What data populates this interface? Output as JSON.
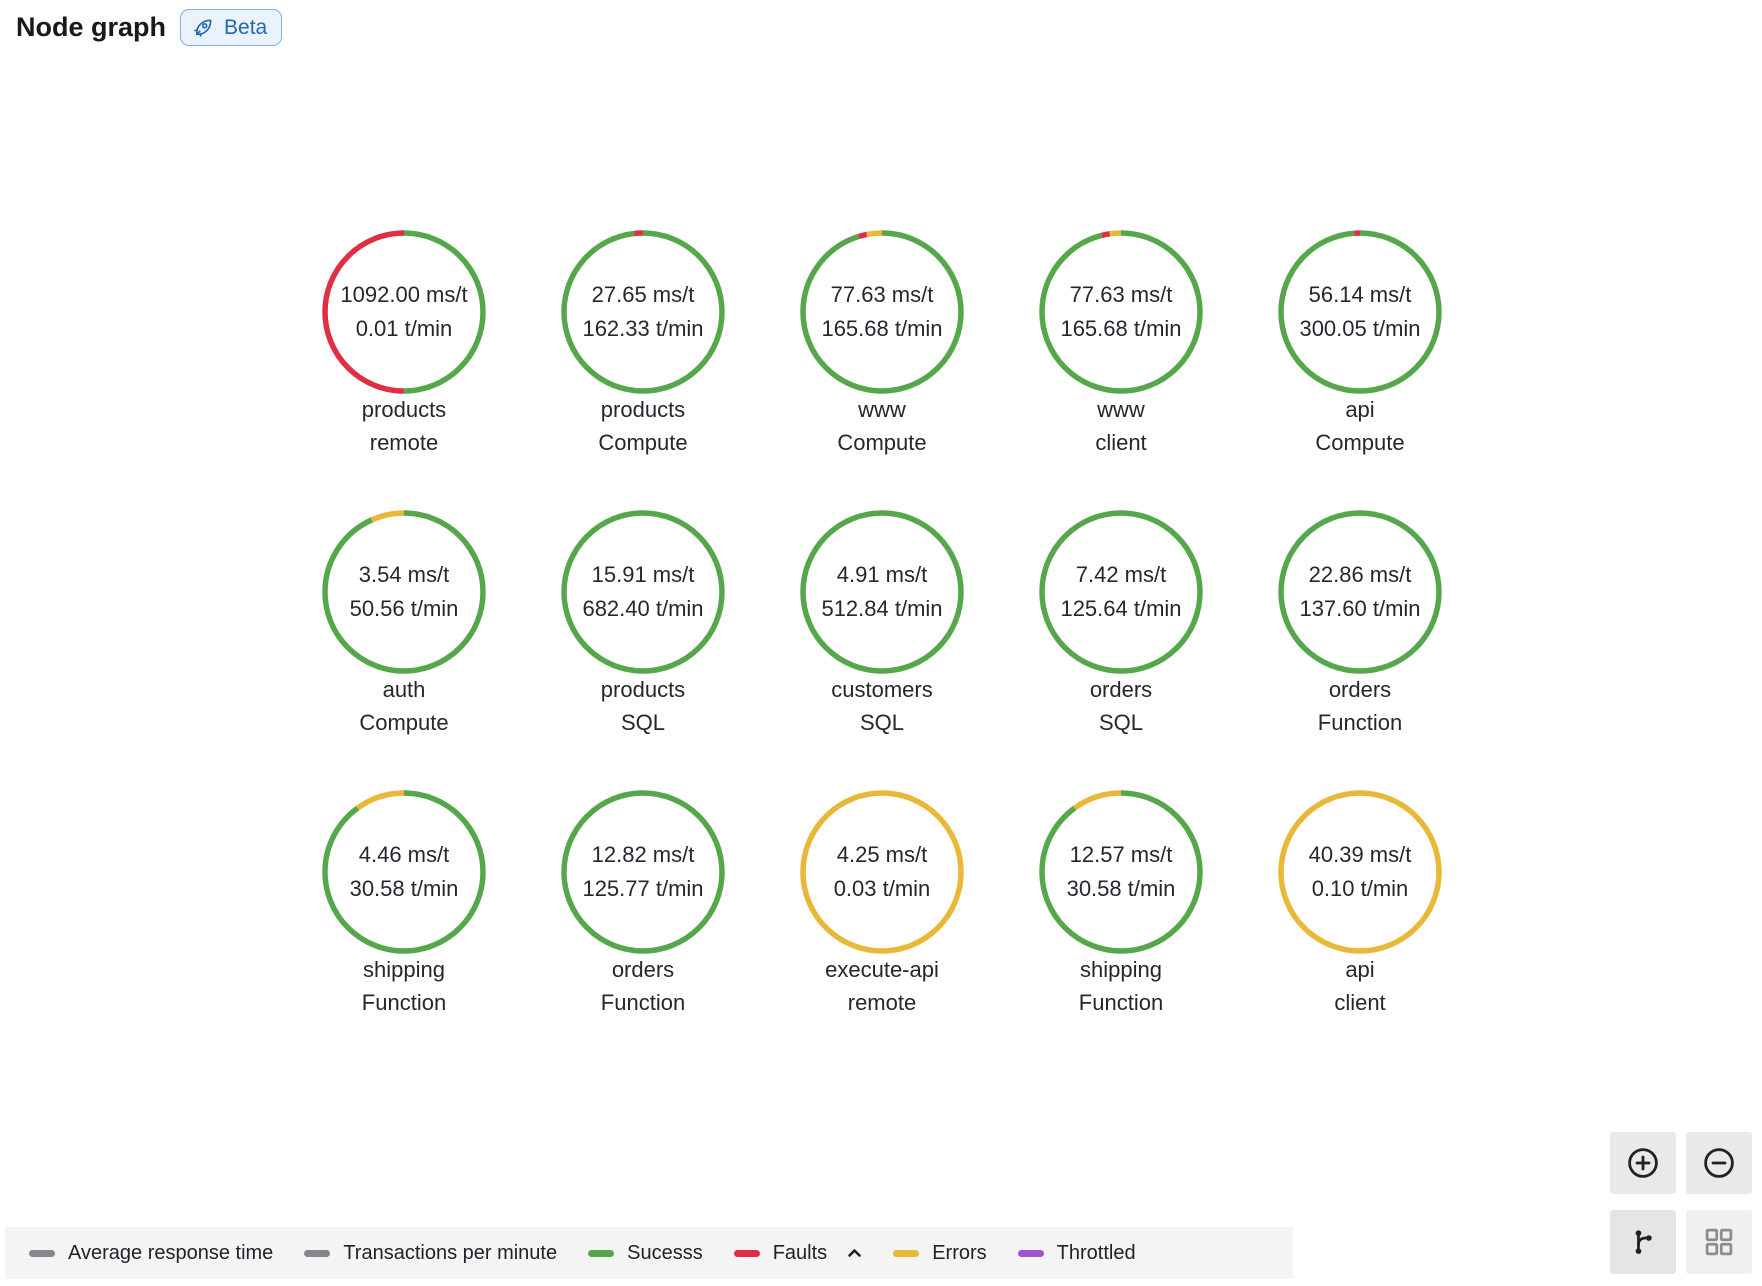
{
  "header": {
    "title": "Node graph",
    "beta": {
      "label": "Beta"
    }
  },
  "colors": {
    "success": "#56A64B",
    "faults": "#E02F44",
    "errors": "#EAB839",
    "throttled": "#A352CC",
    "metric": "#85878C"
  },
  "nodes": [
    {
      "stat1": "1092.00 ms/t",
      "stat2": "0.01 t/min",
      "title": "products",
      "subtitle": "remote",
      "segments": [
        {
          "kind": "success",
          "frac": 0.5
        },
        {
          "kind": "faults",
          "frac": 0.5
        }
      ]
    },
    {
      "stat1": "27.65 ms/t",
      "stat2": "162.33 t/min",
      "title": "products",
      "subtitle": "Compute",
      "segments": [
        {
          "kind": "success",
          "frac": 0.982
        },
        {
          "kind": "faults",
          "frac": 0.018
        }
      ]
    },
    {
      "stat1": "77.63 ms/t",
      "stat2": "165.68 t/min",
      "title": "www",
      "subtitle": "Compute",
      "segments": [
        {
          "kind": "success",
          "frac": 0.952
        },
        {
          "kind": "faults",
          "frac": 0.017
        },
        {
          "kind": "errors",
          "frac": 0.031
        }
      ]
    },
    {
      "stat1": "77.63 ms/t",
      "stat2": "165.68 t/min",
      "title": "www",
      "subtitle": "client",
      "segments": [
        {
          "kind": "success",
          "frac": 0.96
        },
        {
          "kind": "faults",
          "frac": 0.017
        },
        {
          "kind": "errors",
          "frac": 0.023
        }
      ]
    },
    {
      "stat1": "56.14 ms/t",
      "stat2": "300.05 t/min",
      "title": "api",
      "subtitle": "Compute",
      "segments": [
        {
          "kind": "success",
          "frac": 0.988
        },
        {
          "kind": "faults",
          "frac": 0.012
        }
      ]
    },
    {
      "stat1": "3.54 ms/t",
      "stat2": "50.56 t/min",
      "title": "auth",
      "subtitle": "Compute",
      "segments": [
        {
          "kind": "success",
          "frac": 0.933
        },
        {
          "kind": "errors",
          "frac": 0.067
        }
      ]
    },
    {
      "stat1": "15.91 ms/t",
      "stat2": "682.40 t/min",
      "title": "products",
      "subtitle": "SQL",
      "segments": [
        {
          "kind": "success",
          "frac": 1
        }
      ]
    },
    {
      "stat1": "4.91 ms/t",
      "stat2": "512.84 t/min",
      "title": "customers",
      "subtitle": "SQL",
      "segments": [
        {
          "kind": "success",
          "frac": 1
        }
      ]
    },
    {
      "stat1": "7.42 ms/t",
      "stat2": "125.64 t/min",
      "title": "orders",
      "subtitle": "SQL",
      "segments": [
        {
          "kind": "success",
          "frac": 1
        }
      ]
    },
    {
      "stat1": "22.86 ms/t",
      "stat2": "137.60 t/min",
      "title": "orders",
      "subtitle": "Function",
      "segments": [
        {
          "kind": "success",
          "frac": 1
        }
      ]
    },
    {
      "stat1": "4.46 ms/t",
      "stat2": "30.58 t/min",
      "title": "shipping",
      "subtitle": "Function",
      "segments": [
        {
          "kind": "success",
          "frac": 0.9
        },
        {
          "kind": "errors",
          "frac": 0.1
        }
      ]
    },
    {
      "stat1": "12.82 ms/t",
      "stat2": "125.77 t/min",
      "title": "orders",
      "subtitle": "Function",
      "segments": [
        {
          "kind": "success",
          "frac": 1
        }
      ]
    },
    {
      "stat1": "4.25 ms/t",
      "stat2": "0.03 t/min",
      "title": "execute-api",
      "subtitle": "remote",
      "segments": [
        {
          "kind": "errors",
          "frac": 1
        }
      ]
    },
    {
      "stat1": "12.57 ms/t",
      "stat2": "30.58 t/min",
      "title": "shipping",
      "subtitle": "Function",
      "segments": [
        {
          "kind": "success",
          "frac": 0.9
        },
        {
          "kind": "errors",
          "frac": 0.1
        }
      ]
    },
    {
      "stat1": "40.39 ms/t",
      "stat2": "0.10 t/min",
      "title": "api",
      "subtitle": "client",
      "segments": [
        {
          "kind": "errors",
          "frac": 1
        }
      ]
    }
  ],
  "legend": {
    "items": [
      {
        "label": "Average response time",
        "kind": "metric",
        "caret": false
      },
      {
        "label": "Transactions per minute",
        "kind": "metric",
        "caret": false
      },
      {
        "label": "Sucesss",
        "kind": "success",
        "caret": false
      },
      {
        "label": "Faults",
        "kind": "faults",
        "caret": true
      },
      {
        "label": "Errors",
        "kind": "errors",
        "caret": false
      },
      {
        "label": "Throttled",
        "kind": "throttled",
        "caret": false
      }
    ]
  },
  "controls": {
    "zoom_in": "zoom-in",
    "zoom_out": "zoom-out",
    "layout_graph": "graph-layout",
    "layout_grid": "grid-layout"
  }
}
